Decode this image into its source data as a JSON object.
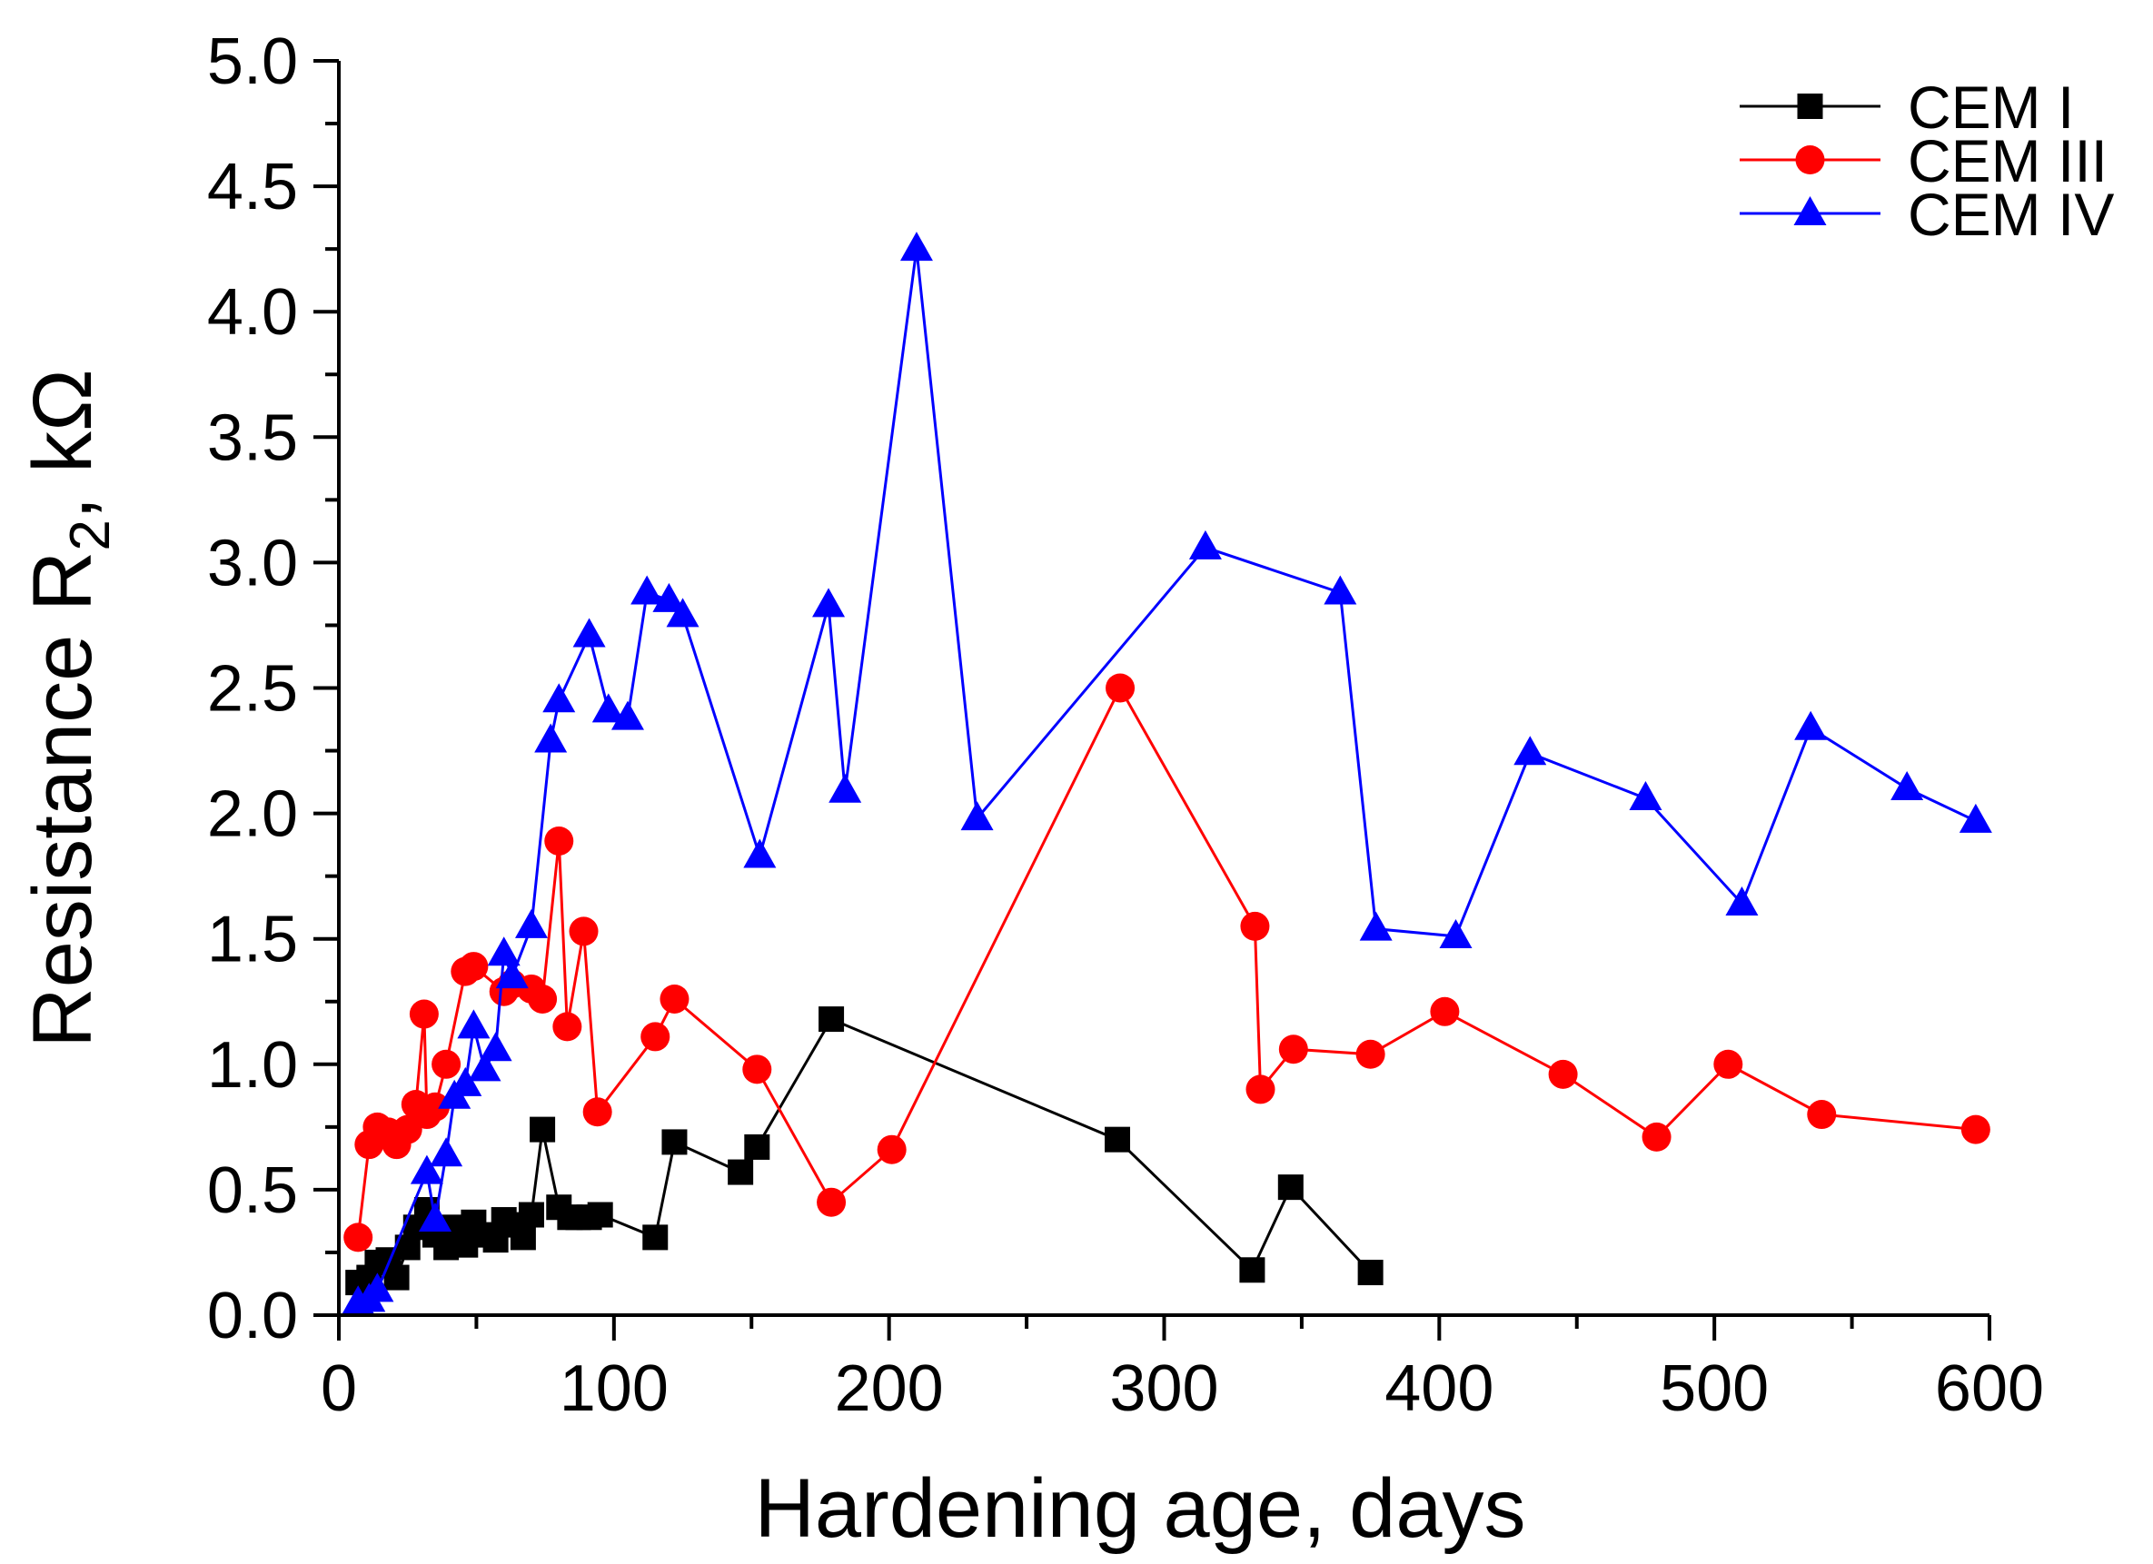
{
  "chart_data": {
    "type": "line",
    "title": "",
    "xlabel": "Hardening age, days",
    "ylabel": {
      "main": "Resistance R",
      "subscript": "2",
      "suffix": ", kΩ"
    },
    "xlim": [
      0,
      600
    ],
    "ylim": [
      0,
      5
    ],
    "xticks": [
      "0",
      "100",
      "200",
      "300",
      "400",
      "500",
      "600"
    ],
    "yticks": [
      "0.0",
      "0.5",
      "1.0",
      "1.5",
      "2.0",
      "2.5",
      "3.0",
      "3.5",
      "4.0",
      "4.5",
      "5.0"
    ],
    "grid": false,
    "legend_position": "top-right",
    "series": [
      {
        "name": "CEM I",
        "color": "#000000",
        "marker": "square",
        "x": [
          7,
          11,
          14,
          18,
          21,
          25,
          28,
          32,
          35,
          39,
          42,
          46,
          49,
          53,
          57,
          60,
          63,
          67,
          70,
          74,
          80,
          84,
          87,
          91,
          95,
          115,
          122,
          146,
          152,
          179,
          283,
          332,
          346,
          375
        ],
        "y": [
          0.13,
          0.15,
          0.21,
          0.22,
          0.15,
          0.27,
          0.35,
          0.42,
          0.32,
          0.27,
          0.35,
          0.28,
          0.37,
          0.32,
          0.3,
          0.38,
          0.36,
          0.31,
          0.4,
          0.74,
          0.43,
          0.39,
          0.39,
          0.39,
          0.4,
          0.31,
          0.69,
          0.57,
          0.67,
          1.18,
          0.7,
          0.18,
          0.51,
          0.17
        ]
      },
      {
        "name": "CEM III",
        "color": "#ff0000",
        "marker": "circle",
        "x": [
          7,
          11,
          14,
          18,
          21,
          25,
          28,
          31,
          32,
          35,
          39,
          46,
          49,
          60,
          63,
          70,
          74,
          80,
          83,
          89,
          94,
          115,
          122,
          152,
          179,
          201,
          284,
          333,
          335,
          347,
          375,
          402,
          445,
          479,
          505,
          539,
          595
        ],
        "y": [
          0.31,
          0.68,
          0.75,
          0.73,
          0.68,
          0.74,
          0.84,
          1.2,
          0.8,
          0.83,
          1.0,
          1.37,
          1.39,
          1.29,
          1.32,
          1.3,
          1.26,
          1.89,
          1.15,
          1.53,
          0.81,
          1.11,
          1.26,
          0.98,
          0.45,
          0.66,
          2.5,
          1.55,
          0.9,
          1.06,
          1.04,
          1.21,
          0.96,
          0.71,
          1.0,
          0.8,
          0.74
        ]
      },
      {
        "name": "CEM IV",
        "color": "#0000ff",
        "marker": "triangle",
        "x": [
          7,
          11,
          14,
          32,
          35,
          39,
          42,
          46,
          49,
          53,
          57,
          60,
          63,
          70,
          77,
          80,
          91,
          98,
          105,
          112,
          120,
          125,
          153,
          178,
          184,
          210,
          232,
          315,
          364,
          377,
          406,
          433,
          475,
          510,
          535,
          570,
          595
        ],
        "y": [
          0.05,
          0.06,
          0.1,
          0.57,
          0.38,
          0.64,
          0.87,
          0.92,
          1.15,
          0.98,
          1.06,
          1.44,
          1.35,
          1.55,
          2.29,
          2.45,
          2.71,
          2.41,
          2.38,
          2.88,
          2.85,
          2.79,
          1.83,
          2.83,
          2.09,
          4.25,
          1.98,
          3.06,
          2.88,
          1.54,
          1.51,
          2.24,
          2.06,
          1.64,
          2.34,
          2.1,
          1.97
        ]
      }
    ]
  }
}
